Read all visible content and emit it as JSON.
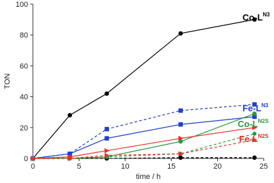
{
  "chart_data": {
    "type": "line",
    "xlabel": "time / h",
    "ylabel": "TON",
    "xlim": [
      0,
      25
    ],
    "xticks": [
      0,
      5,
      10,
      15,
      20,
      25
    ],
    "ylim": [
      0,
      100
    ],
    "yticks": [
      0,
      20,
      40,
      60,
      80,
      100
    ],
    "x": [
      0,
      4,
      8,
      16,
      24
    ],
    "series": [
      {
        "color": "#000000",
        "dash": false,
        "marker": "circle",
        "values": [
          0,
          28,
          42,
          81,
          90
        ]
      },
      {
        "color": "#000000",
        "dash": true,
        "marker": "circle",
        "values": [
          0,
          0,
          0,
          0.5,
          0.5
        ]
      },
      {
        "color": "#1f3fd0",
        "dash": true,
        "marker": "square",
        "values": [
          0,
          3,
          19,
          31,
          35
        ]
      },
      {
        "color": "#1f3fd0",
        "dash": false,
        "marker": "square",
        "values": [
          0,
          3,
          13,
          22,
          27
        ]
      },
      {
        "color": "#2a9a3a",
        "dash": false,
        "marker": "circle",
        "values": [
          0,
          0,
          1,
          11,
          29
        ]
      },
      {
        "color": "#2a9a3a",
        "dash": true,
        "marker": "hexagon",
        "values": [
          0,
          0,
          1,
          3,
          16
        ]
      },
      {
        "color": "#e8302a",
        "dash": false,
        "marker": "triangle",
        "values": [
          0,
          1,
          5,
          13,
          20
        ]
      },
      {
        "color": "#e8302a",
        "dash": true,
        "marker": "triangle",
        "values": [
          0,
          0,
          2,
          3,
          12
        ]
      }
    ],
    "annotations": [
      {
        "text": "Co-L",
        "sup": "N3",
        "color": "#000000"
      },
      {
        "text": "Fe-L",
        "sup": "N3",
        "color": "#1f3fd0"
      },
      {
        "text": "Co-L",
        "sup": "N2S",
        "color": "#2a9a3a"
      },
      {
        "text": "Fe-L",
        "sup": "N2S",
        "color": "#e8302a"
      }
    ]
  }
}
